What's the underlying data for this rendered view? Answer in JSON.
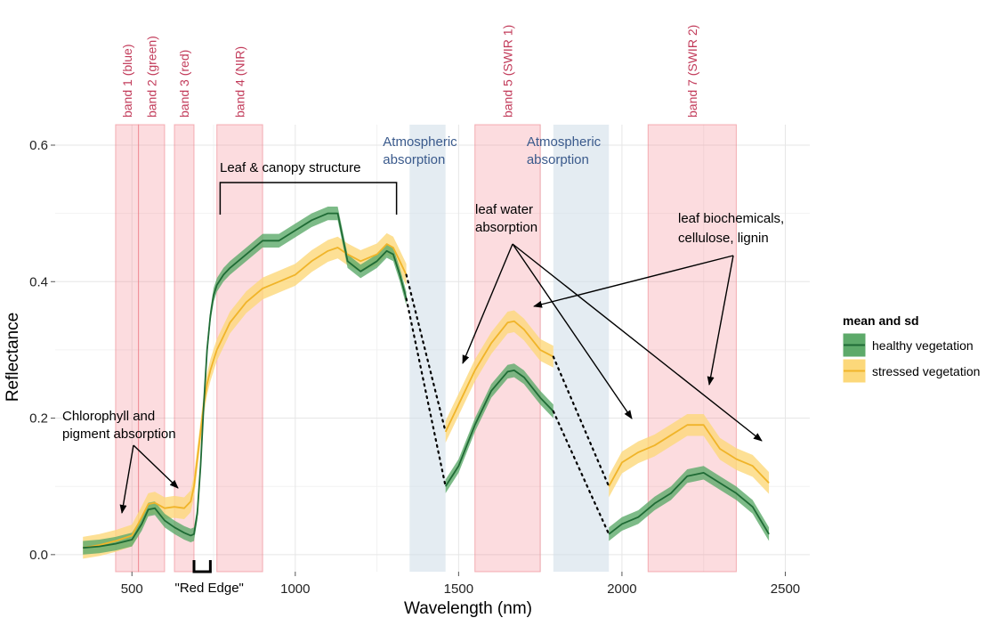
{
  "chart_data": {
    "type": "line",
    "xlabel": "Wavelength (nm)",
    "ylabel": "Reflectance",
    "xlim": [
      265,
      2575
    ],
    "ylim": [
      -0.025,
      0.63
    ],
    "x_ticks": [
      500,
      1000,
      1500,
      2000,
      2500
    ],
    "y_ticks": [
      0.0,
      0.2,
      0.4,
      0.6
    ],
    "x_tick_labels": [
      "500",
      "1000",
      "1500",
      "2000",
      "2500"
    ],
    "y_tick_labels": [
      "0.0",
      "0.2",
      "0.4",
      "0.6"
    ],
    "grid": true,
    "legend": {
      "title": "mean and sd",
      "position": "right",
      "entries": [
        "healthy vegetation",
        "stressed vegetation"
      ]
    },
    "bands": [
      {
        "label": "band 1 (blue)",
        "range": [
          450,
          520
        ]
      },
      {
        "label": "band 2 (green)",
        "range": [
          520,
          600
        ]
      },
      {
        "label": "band 3 (red)",
        "range": [
          630,
          690
        ]
      },
      {
        "label": "band 4 (NIR)",
        "range": [
          760,
          900
        ]
      },
      {
        "label": "band 5 (SWIR 1)",
        "range": [
          1550,
          1750
        ]
      },
      {
        "label": "band 7 (SWIR 2)",
        "range": [
          2080,
          2350
        ]
      }
    ],
    "atmospheric_absorption": [
      {
        "label": "Atmospheric absorption",
        "range": [
          1350,
          1460
        ]
      },
      {
        "label": "Atmospheric absorption",
        "range": [
          1790,
          1960
        ]
      }
    ],
    "annotations": [
      {
        "text": "Leaf & canopy structure"
      },
      {
        "text": "leaf water absorption"
      },
      {
        "text": "leaf biochemicals, cellulose, lignin"
      },
      {
        "text": "Chlorophyll and pigment absorption"
      },
      {
        "text": "\"Red Edge\""
      }
    ],
    "series": [
      {
        "name": "healthy vegetation",
        "color": "#1f6b35",
        "band_color": "#5daa6a",
        "sd": 0.01,
        "segments": [
          {
            "x": [
              350,
              400,
              450,
              500,
              530,
              550,
              570,
              600,
              630,
              660,
              680,
              690,
              700,
              710,
              720,
              730,
              740,
              750,
              760,
              780,
              800,
              850,
              900,
              950,
              1000,
              1050,
              1100,
              1130,
              1160,
              1200,
              1250,
              1280,
              1300,
              1320,
              1340
            ],
            "y": [
              0.01,
              0.012,
              0.016,
              0.022,
              0.045,
              0.066,
              0.068,
              0.05,
              0.04,
              0.032,
              0.028,
              0.03,
              0.06,
              0.13,
              0.22,
              0.3,
              0.35,
              0.38,
              0.395,
              0.41,
              0.42,
              0.44,
              0.46,
              0.46,
              0.475,
              0.49,
              0.5,
              0.5,
              0.43,
              0.415,
              0.43,
              0.445,
              0.44,
              0.41,
              0.375
            ]
          },
          {
            "x": [
              1460,
              1500,
              1550,
              1600,
              1650,
              1670,
              1700,
              1750,
              1790
            ],
            "y": [
              0.1,
              0.13,
              0.19,
              0.24,
              0.268,
              0.27,
              0.26,
              0.23,
              0.21
            ]
          },
          {
            "x": [
              1960,
              2000,
              2050,
              2100,
              2150,
              2200,
              2250,
              2300,
              2350,
              2400,
              2450
            ],
            "y": [
              0.03,
              0.045,
              0.055,
              0.075,
              0.09,
              0.115,
              0.12,
              0.105,
              0.09,
              0.07,
              0.03
            ]
          }
        ]
      },
      {
        "name": "stressed vegetation",
        "color": "#f0b429",
        "band_color": "#fcd87a",
        "sd": 0.016,
        "segments": [
          {
            "x": [
              350,
              400,
              450,
              500,
              530,
              550,
              570,
              600,
              630,
              660,
              680,
              690,
              700,
              710,
              720,
              730,
              740,
              750,
              760,
              780,
              800,
              850,
              900,
              950,
              1000,
              1050,
              1100,
              1130,
              1160,
              1200,
              1250,
              1280,
              1300,
              1320,
              1340
            ],
            "y": [
              0.01,
              0.014,
              0.02,
              0.028,
              0.055,
              0.074,
              0.076,
              0.068,
              0.07,
              0.068,
              0.078,
              0.1,
              0.14,
              0.18,
              0.22,
              0.25,
              0.27,
              0.285,
              0.3,
              0.32,
              0.34,
              0.37,
              0.39,
              0.4,
              0.41,
              0.43,
              0.445,
              0.45,
              0.44,
              0.43,
              0.44,
              0.455,
              0.45,
              0.43,
              0.41
            ]
          },
          {
            "x": [
              1460,
              1500,
              1550,
              1600,
              1650,
              1670,
              1700,
              1750,
              1790
            ],
            "y": [
              0.18,
              0.22,
              0.27,
              0.31,
              0.34,
              0.342,
              0.33,
              0.3,
              0.29
            ]
          },
          {
            "x": [
              1960,
              2000,
              2050,
              2100,
              2150,
              2200,
              2250,
              2300,
              2350,
              2400,
              2450
            ],
            "y": [
              0.1,
              0.135,
              0.15,
              0.16,
              0.175,
              0.19,
              0.19,
              0.155,
              0.14,
              0.13,
              0.105
            ]
          }
        ]
      }
    ]
  }
}
